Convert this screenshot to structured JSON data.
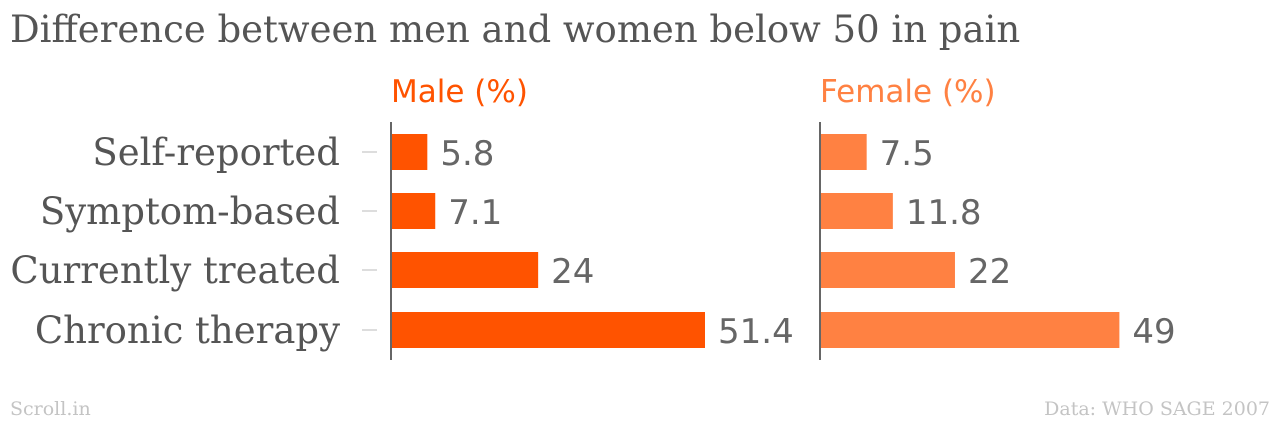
{
  "title": "Difference between men and women below 50 in pain",
  "source_left": "Scroll.in",
  "source_right": "Data: WHO SAGE 2007",
  "chart_data": {
    "type": "bar",
    "orientation": "horizontal",
    "title": "Difference between men and women below 50 in pain",
    "categories": [
      "Self-reported",
      "Symptom-based",
      "Currently treated",
      "Chronic therapy"
    ],
    "series": [
      {
        "name": "Male (%)",
        "values": [
          5.8,
          7.1,
          24,
          51.4
        ],
        "color": "#ff5300"
      },
      {
        "name": "Female (%)",
        "values": [
          7.5,
          11.8,
          22,
          49
        ],
        "color": "#ff8142"
      }
    ],
    "xlim": [
      0,
      51.4
    ],
    "grid": false,
    "layout": "small-multiples"
  }
}
